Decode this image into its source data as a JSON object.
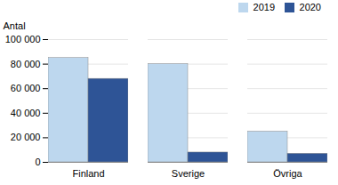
{
  "chart_data": {
    "type": "bar",
    "categories": [
      "Finland",
      "Sverige",
      "Övriga"
    ],
    "series": [
      {
        "name": "2019",
        "color": "#bdd7ee",
        "values": [
          85000,
          80000,
          25000
        ]
      },
      {
        "name": "2020",
        "color": "#2e5496",
        "values": [
          68000,
          8000,
          7000
        ]
      }
    ],
    "ylabel": "Antal",
    "ylim": [
      0,
      100000
    ],
    "yticks": [
      0,
      {
        "value": 20000,
        "label": "20 000"
      },
      {
        "value": 40000,
        "label": "40 000"
      },
      {
        "value": 60000,
        "label": "60 000"
      },
      {
        "value": 80000,
        "label": "80 000"
      },
      {
        "value": 100000,
        "label": "100 000"
      }
    ],
    "grid": true,
    "legend": "upper right"
  }
}
